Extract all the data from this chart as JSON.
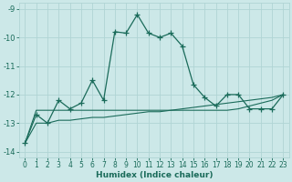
{
  "xlabel": "Humidex (Indice chaleur)",
  "background_color": "#cce8e8",
  "grid_color": "#b0d4d4",
  "line_color": "#1a6b5a",
  "xlim": [
    -0.5,
    23.5
  ],
  "ylim": [
    -14.2,
    -8.8
  ],
  "xticks": [
    0,
    1,
    2,
    3,
    4,
    5,
    6,
    7,
    8,
    9,
    10,
    11,
    12,
    13,
    14,
    15,
    16,
    17,
    18,
    19,
    20,
    21,
    22,
    23
  ],
  "yticks": [
    -14,
    -13,
    -12,
    -11,
    -10,
    -9
  ],
  "series1_x": [
    0,
    1,
    2,
    3,
    4,
    5,
    6,
    7,
    8,
    9,
    10,
    11,
    12,
    13,
    14,
    15,
    16,
    17,
    18,
    19,
    20,
    21,
    22,
    23
  ],
  "series1_y": [
    -13.7,
    -12.7,
    -13.0,
    -12.2,
    -12.5,
    -12.3,
    -11.5,
    -12.2,
    -9.8,
    -9.85,
    -9.2,
    -9.85,
    -10.0,
    -9.85,
    -10.3,
    -11.65,
    -12.1,
    -12.4,
    -12.0,
    -12.0,
    -12.5,
    -12.5,
    -12.5,
    -12.0
  ],
  "series2_x": [
    0,
    1,
    2,
    3,
    4,
    5,
    6,
    7,
    8,
    9,
    10,
    11,
    12,
    13,
    14,
    15,
    16,
    17,
    18,
    19,
    20,
    21,
    22,
    23
  ],
  "series2_y": [
    -13.7,
    -12.55,
    -12.55,
    -12.55,
    -12.55,
    -12.55,
    -12.55,
    -12.55,
    -12.55,
    -12.55,
    -12.55,
    -12.55,
    -12.55,
    -12.55,
    -12.55,
    -12.55,
    -12.55,
    -12.55,
    -12.55,
    -12.5,
    -12.4,
    -12.3,
    -12.2,
    -12.0
  ],
  "series3_x": [
    0,
    1,
    2,
    3,
    4,
    5,
    6,
    7,
    8,
    9,
    10,
    11,
    12,
    13,
    14,
    15,
    16,
    17,
    18,
    19,
    20,
    21,
    22,
    23
  ],
  "series3_y": [
    -13.7,
    -13.0,
    -13.0,
    -12.9,
    -12.9,
    -12.85,
    -12.8,
    -12.8,
    -12.75,
    -12.7,
    -12.65,
    -12.6,
    -12.6,
    -12.55,
    -12.5,
    -12.45,
    -12.4,
    -12.35,
    -12.3,
    -12.25,
    -12.2,
    -12.15,
    -12.1,
    -12.0
  ],
  "tick_color": "#1a6b5a",
  "xlabel_fontsize": 6.5,
  "tick_fontsize": 5.5
}
